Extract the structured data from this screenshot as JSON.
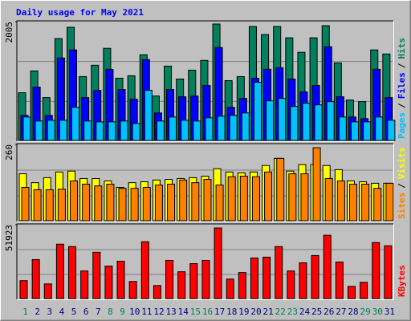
{
  "title": "Daily usage for May 2021",
  "chart_data": [
    {
      "type": "bar",
      "ylim": [
        0,
        2005
      ],
      "yticks": [
        2005
      ],
      "label_separator": "/",
      "series": [
        {
          "name": "Hits",
          "color": "#00805c",
          "values": [
            813,
            1179,
            732,
            1721,
            1911,
            1084,
            1274,
            1558,
            1057,
            1098,
            1450,
            759,
            1260,
            1043,
            1192,
            1355,
            1965,
            1016,
            1084,
            1924,
            1789,
            1924,
            1734,
            1491,
            1734,
            1938,
            1314,
            691,
            664,
            1531,
            1463
          ]
        },
        {
          "name": "Files",
          "color": "#0000ff",
          "values": [
            434,
            908,
            434,
            1396,
            1531,
            732,
            854,
            1206,
            867,
            705,
            1369,
            474,
            867,
            745,
            759,
            935,
            1572,
            569,
            718,
            1057,
            1206,
            1233,
            1043,
            827,
            935,
            1585,
            745,
            406,
            379,
            1206,
            732
          ]
        },
        {
          "name": "Pages",
          "color": "#00c0ff",
          "values": [
            406,
            339,
            352,
            352,
            569,
            339,
            325,
            325,
            339,
            298,
            854,
            339,
            406,
            352,
            339,
            393,
            420,
            434,
            474,
            989,
            678,
            718,
            583,
            637,
            610,
            664,
            406,
            325,
            325,
            406,
            352
          ]
        }
      ]
    },
    {
      "type": "bar",
      "ylim": [
        0,
        260
      ],
      "yticks": [
        260
      ],
      "label_separator": "/",
      "series": [
        {
          "name": "Visits",
          "color": "#ffff00",
          "values": [
            161,
            131,
            148,
            167,
            170,
            145,
            145,
            137,
            115,
            131,
            134,
            140,
            142,
            145,
            148,
            153,
            178,
            167,
            164,
            167,
            189,
            213,
            170,
            192,
            192,
            189,
            175,
            137,
            134,
            129,
            129
          ]
        },
        {
          "name": "Sites",
          "color": "#ff8000",
          "values": [
            115,
            107,
            107,
            109,
            137,
            126,
            120,
            126,
            112,
            112,
            115,
            123,
            126,
            140,
            131,
            142,
            123,
            151,
            153,
            151,
            167,
            213,
            161,
            161,
            249,
            145,
            137,
            126,
            126,
            112,
            129
          ]
        }
      ]
    },
    {
      "type": "bar",
      "ylim": [
        0,
        51923
      ],
      "yticks": [
        51923
      ],
      "categories": [
        "1",
        "2",
        "3",
        "4",
        "5",
        "6",
        "7",
        "8",
        "9",
        "10",
        "11",
        "12",
        "13",
        "14",
        "15",
        "16",
        "17",
        "18",
        "19",
        "20",
        "21",
        "22",
        "23",
        "24",
        "25",
        "26",
        "27",
        "28",
        "29",
        "30",
        "31"
      ],
      "category_colors": [
        "#00805c",
        "#000080",
        "#000080",
        "#000080",
        "#000080",
        "#000080",
        "#000080",
        "#00805c",
        "#00805c",
        "#000080",
        "#000080",
        "#000080",
        "#000080",
        "#000080",
        "#00805c",
        "#00805c",
        "#000080",
        "#000080",
        "#000080",
        "#000080",
        "#000080",
        "#00805c",
        "#00805c",
        "#000080",
        "#000080",
        "#000080",
        "#000080",
        "#000080",
        "#00805c",
        "#00805c",
        "#000080"
      ],
      "series": [
        {
          "name": "KBytes",
          "color": "#ff0000",
          "values": [
            12981,
            27655,
            10724,
            38379,
            36686,
            19754,
            32735,
            23140,
            26527,
            12417,
            40072,
            9595,
            27091,
            19190,
            24834,
            27091,
            49667,
            14110,
            18625,
            28784,
            29349,
            36686,
            19754,
            25398,
            30478,
            44588,
            25963,
            9030,
            11852,
            39508,
            37251
          ]
        }
      ]
    }
  ]
}
